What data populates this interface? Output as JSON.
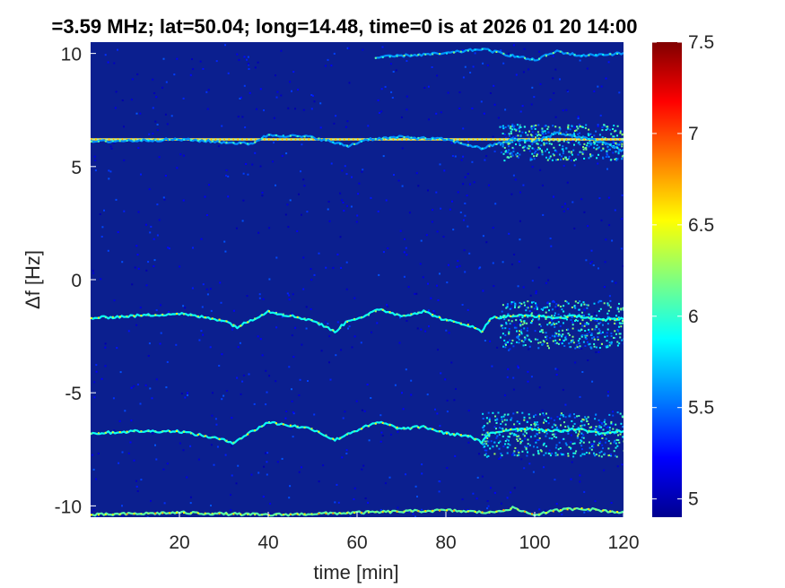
{
  "chart_data": {
    "type": "heatmap",
    "title": "=3.59 MHz;  lat=50.04; long=14.48, time=0 is at 2026 01 20 14:00",
    "xlabel": "time [min]",
    "ylabel": "Δf [Hz]",
    "xlim": [
      0,
      120
    ],
    "ylim": [
      -10.5,
      10.5
    ],
    "x_ticks": [
      20,
      40,
      60,
      80,
      100,
      120
    ],
    "x_tick_labels": [
      "20",
      "40",
      "60",
      "80",
      "100",
      "120"
    ],
    "y_ticks": [
      -10,
      -5,
      0,
      5,
      10
    ],
    "y_tick_labels": [
      "-10",
      "-5",
      "0",
      "5",
      "10"
    ],
    "colorbar": {
      "colormap": "jet",
      "range": [
        4.9,
        7.5
      ],
      "ticks": [
        5,
        5.5,
        6,
        6.5,
        7,
        7.5
      ],
      "tick_labels": [
        "5",
        "5.5",
        "6",
        "6.5",
        "7",
        "7.5"
      ]
    },
    "background_color": "#0b1f8f",
    "grid": false,
    "series": [
      {
        "kind": "constant-line",
        "y": 6.2,
        "level": 6.7
      },
      {
        "kind": "trace",
        "level": 6.1,
        "x": [
          0,
          10,
          20,
          30,
          33,
          40,
          50,
          55,
          58,
          62,
          65,
          70,
          75,
          80,
          85,
          88,
          90,
          95,
          100,
          105,
          110,
          115,
          120
        ],
        "y": [
          -1.7,
          -1.6,
          -1.5,
          -1.8,
          -2.1,
          -1.4,
          -1.8,
          -2.3,
          -1.8,
          -1.6,
          -1.3,
          -1.6,
          -1.4,
          -1.8,
          -2.0,
          -2.3,
          -1.7,
          -1.6,
          -1.6,
          -1.7,
          -1.6,
          -1.8,
          -1.7
        ]
      },
      {
        "kind": "trace",
        "level": 6.1,
        "x": [
          0,
          10,
          20,
          28,
          32,
          40,
          50,
          55,
          58,
          62,
          65,
          70,
          75,
          80,
          85,
          88,
          90,
          95,
          100,
          105,
          110,
          115,
          120
        ],
        "y": [
          -6.8,
          -6.7,
          -6.7,
          -7.0,
          -7.2,
          -6.3,
          -6.6,
          -7.1,
          -6.8,
          -6.5,
          -6.3,
          -6.6,
          -6.5,
          -6.8,
          -6.9,
          -7.2,
          -6.8,
          -6.6,
          -6.6,
          -6.7,
          -6.6,
          -6.8,
          -6.7
        ]
      },
      {
        "kind": "trace",
        "level": 5.8,
        "x": [
          0,
          20,
          36,
          40,
          50,
          58,
          62,
          70,
          80,
          88,
          95,
          100,
          105,
          110,
          115,
          120
        ],
        "y": [
          6.1,
          6.2,
          6.0,
          6.4,
          6.3,
          5.9,
          6.2,
          6.3,
          6.2,
          5.8,
          6.2,
          6.1,
          6.5,
          6.3,
          6.1,
          5.7
        ]
      },
      {
        "kind": "trace",
        "level": 5.8,
        "x": [
          64,
          70,
          80,
          88,
          95,
          100,
          105,
          110,
          120
        ],
        "y": [
          9.8,
          9.9,
          10.0,
          10.2,
          9.9,
          9.7,
          10.1,
          9.9,
          10.0
        ]
      },
      {
        "kind": "trace",
        "level": 6.3,
        "x": [
          0,
          20,
          40,
          60,
          80,
          90,
          95,
          100,
          105,
          110,
          115,
          120
        ],
        "y": [
          -10.4,
          -10.3,
          -10.4,
          -10.3,
          -10.2,
          -10.3,
          -10.1,
          -10.4,
          -10.2,
          -10.1,
          -10.2,
          -10.3
        ]
      }
    ],
    "noisy_regions": [
      {
        "x": [
          92,
          120
        ],
        "y": [
          -3.0,
          -0.9
        ]
      },
      {
        "x": [
          88,
          120
        ],
        "y": [
          -7.8,
          -5.8
        ]
      },
      {
        "x": [
          92,
          120
        ],
        "y": [
          5.3,
          6.9
        ]
      }
    ]
  }
}
